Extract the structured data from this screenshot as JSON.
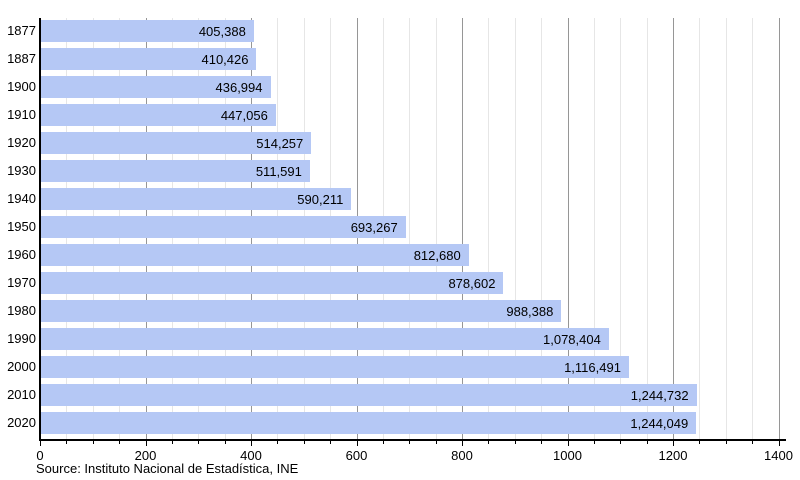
{
  "chart_data": {
    "type": "bar",
    "orientation": "horizontal",
    "title": "",
    "categories": [
      "1877",
      "1887",
      "1900",
      "1910",
      "1920",
      "1930",
      "1940",
      "1950",
      "1960",
      "1970",
      "1980",
      "1990",
      "2000",
      "2010",
      "2020"
    ],
    "values": [
      405388,
      410426,
      436994,
      447056,
      514257,
      511591,
      590211,
      693267,
      812680,
      878602,
      988388,
      1078404,
      1116491,
      1244732,
      1244049
    ],
    "value_labels": [
      "405,388",
      "410,426",
      "436,994",
      "447,056",
      "514,257",
      "511,591",
      "590,211",
      "693,267",
      "812,680",
      "878,602",
      "988,388",
      "1,078,404",
      "1,116,491",
      "1,244,732",
      "1,244,049"
    ],
    "x_tick_labels": [
      "0",
      "200",
      "400",
      "600",
      "800",
      "1000",
      "1200",
      "1400"
    ],
    "x_axis_unit": "thousands",
    "xlim_thousands": [
      0,
      1400
    ],
    "minor_grid_step_thousands": 50,
    "major_grid_step_thousands": 200,
    "grid": true,
    "legend": false,
    "colors": {
      "bar_fill": "#b5c8f5",
      "axis": "#000000",
      "major_gridline": "#969696",
      "minor_gridline": "#e6e6e6",
      "label_text": "#000000"
    },
    "source": "Source: Instituto Nacional de Estadística, INE"
  }
}
